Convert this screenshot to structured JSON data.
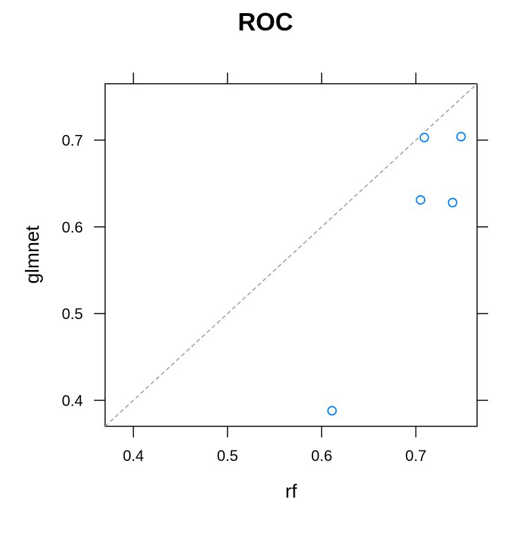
{
  "chart_data": {
    "type": "scatter",
    "title": "ROC",
    "xlabel": "rf",
    "ylabel": "glmnet",
    "xlim": [
      0.37,
      0.765
    ],
    "ylim": [
      0.37,
      0.765
    ],
    "xticks": [
      0.4,
      0.5,
      0.6,
      0.7
    ],
    "yticks": [
      0.4,
      0.5,
      0.6,
      0.7
    ],
    "grid": false,
    "reference_line": "y = x",
    "colors": {
      "points": "#0080ff",
      "reference_line": "#999999",
      "axis": "#000000"
    },
    "series": [
      {
        "points": [
          {
            "x": 0.709,
            "y": 0.703
          },
          {
            "x": 0.748,
            "y": 0.704
          },
          {
            "x": 0.705,
            "y": 0.631
          },
          {
            "x": 0.739,
            "y": 0.628
          },
          {
            "x": 0.611,
            "y": 0.388
          }
        ]
      }
    ]
  }
}
